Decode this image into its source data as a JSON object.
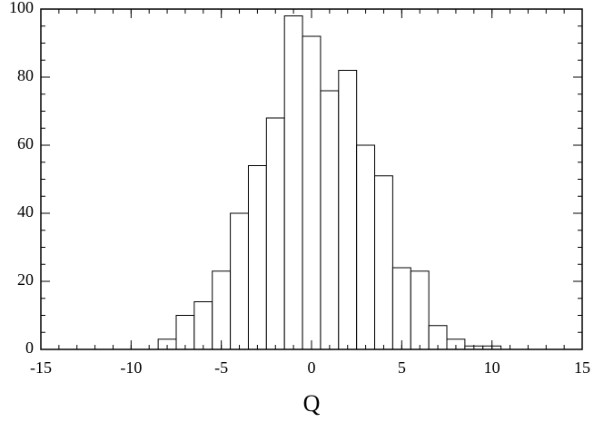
{
  "chart_data": {
    "type": "histogram",
    "x_label": "Q",
    "bins": [
      -8.5,
      -7.5,
      -6.5,
      -5.5,
      -4.5,
      -3.5,
      -2.5,
      -1.5,
      -0.5,
      0.5,
      1.5,
      2.5,
      3.5,
      4.5,
      5.5,
      6.5,
      7.5,
      8.5,
      9.5,
      10.5
    ],
    "values": [
      3,
      10,
      14,
      23,
      40,
      54,
      68,
      98,
      92,
      76,
      82,
      60,
      51,
      24,
      23,
      7,
      3,
      1,
      1
    ],
    "color": "#ffffff",
    "xlim": [
      -15,
      15
    ],
    "xticks": [
      -15,
      -10,
      -5,
      0,
      5,
      10,
      15
    ],
    "ylim": [
      0,
      100
    ],
    "yticks": [
      0,
      20,
      40,
      60,
      80,
      100
    ]
  }
}
